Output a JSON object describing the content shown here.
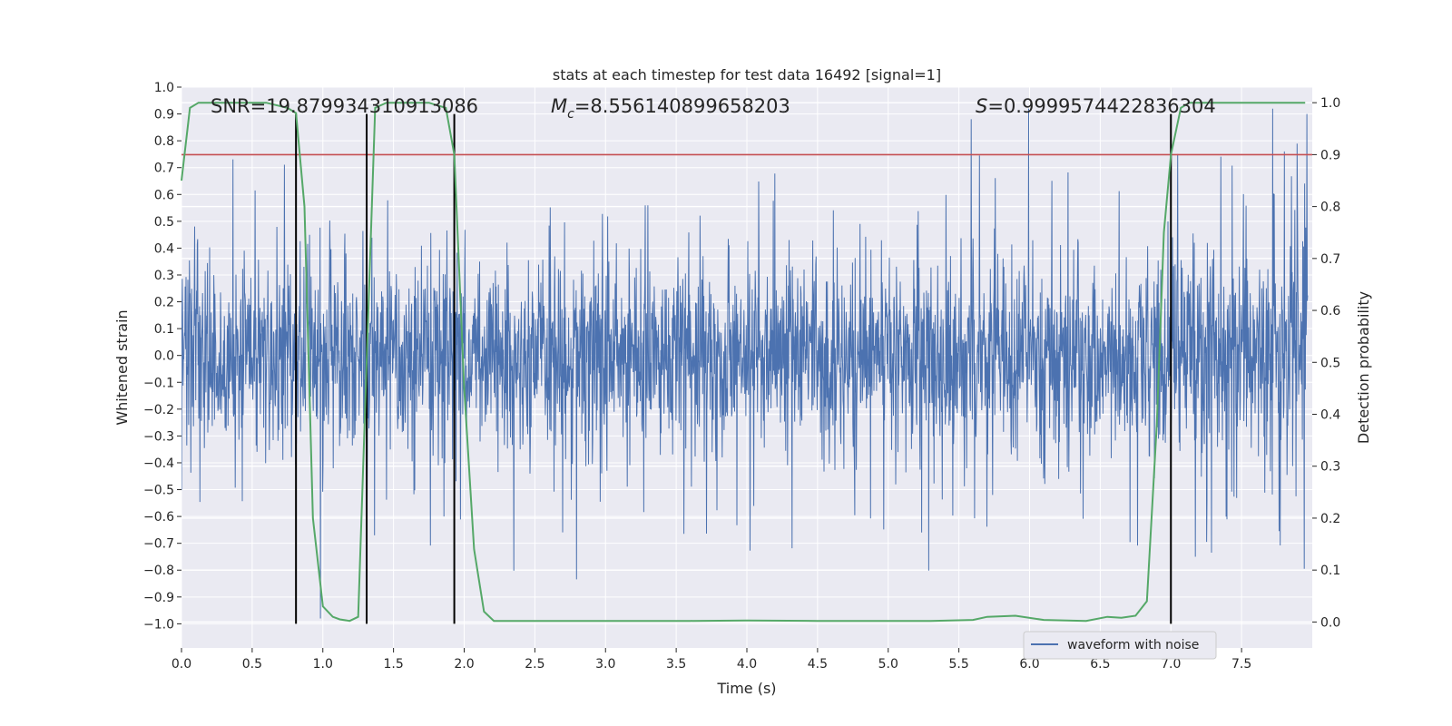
{
  "chart_data": {
    "type": "line",
    "title": "stats at each timestep for test data 16492 [signal=1]",
    "xlabel": "Time (s)",
    "ylabel_left": "Whitened strain",
    "ylabel_right": "Detection probability",
    "xlim": [
      0.0,
      8.0
    ],
    "ylim_left": [
      -1.09,
      1.0
    ],
    "ylim_right": [
      -0.05,
      1.03
    ],
    "x_ticks": [
      "0.0",
      "0.5",
      "1.0",
      "1.5",
      "2.0",
      "2.5",
      "3.0",
      "3.5",
      "4.0",
      "4.5",
      "5.0",
      "5.5",
      "6.0",
      "6.5",
      "7.0",
      "7.5"
    ],
    "x_tick_values": [
      0.0,
      0.5,
      1.0,
      1.5,
      2.0,
      2.5,
      3.0,
      3.5,
      4.0,
      4.5,
      5.0,
      5.5,
      6.0,
      6.5,
      7.0,
      7.5
    ],
    "y_left_ticks": [
      "1.0",
      "0.9",
      "0.8",
      "0.7",
      "0.6",
      "0.5",
      "0.4",
      "0.3",
      "0.2",
      "0.1",
      "0.0",
      "−0.1",
      "−0.2",
      "−0.3",
      "−0.4",
      "−0.5",
      "−0.6",
      "−0.7",
      "−0.8",
      "−0.9",
      "−1.0"
    ],
    "y_left_tick_values": [
      1.0,
      0.9,
      0.8,
      0.7,
      0.6,
      0.5,
      0.4,
      0.3,
      0.2,
      0.1,
      0.0,
      -0.1,
      -0.2,
      -0.3,
      -0.4,
      -0.5,
      -0.6,
      -0.7,
      -0.8,
      -0.9,
      -1.0
    ],
    "y_right_ticks": [
      "1.0",
      "0.9",
      "0.8",
      "0.7",
      "0.6",
      "0.5",
      "0.4",
      "0.3",
      "0.2",
      "0.1",
      "0.0"
    ],
    "y_right_tick_values": [
      1.0,
      0.9,
      0.8,
      0.7,
      0.6,
      0.5,
      0.4,
      0.3,
      0.2,
      0.1,
      0.0
    ],
    "threshold": 0.9,
    "vertical_lines_x": [
      0.81,
      1.31,
      1.93,
      7.0
    ],
    "annotations": {
      "snr": "SNR=19.879934310913086",
      "mc_symbol": "M",
      "mc_sub": "c",
      "mc_value": "=8.556140899658203",
      "s_symbol": "S",
      "s_value": "=0.9999574422836304"
    },
    "legend": [
      "waveform with noise"
    ],
    "series": [
      {
        "name": "Detection probability",
        "x": [
          0.0,
          0.06,
          0.12,
          0.3,
          0.6,
          0.75,
          0.81,
          0.87,
          0.93,
          1.0,
          1.07,
          1.12,
          1.19,
          1.25,
          1.31,
          1.37,
          1.45,
          1.75,
          1.87,
          1.93,
          2.0,
          2.07,
          2.14,
          2.21,
          2.4,
          2.8,
          3.2,
          3.6,
          4.0,
          4.5,
          5.0,
          5.3,
          5.6,
          5.7,
          5.9,
          6.1,
          6.4,
          6.55,
          6.65,
          6.75,
          6.83,
          6.9,
          6.95,
          7.0,
          7.07,
          7.13,
          7.5,
          7.95
        ],
        "values": [
          0.85,
          0.99,
          1.0,
          1.0,
          1.0,
          0.99,
          0.98,
          0.8,
          0.2,
          0.03,
          0.01,
          0.005,
          0.002,
          0.01,
          0.5,
          0.99,
          1.0,
          1.0,
          0.99,
          0.9,
          0.45,
          0.14,
          0.02,
          0.002,
          0.002,
          0.002,
          0.002,
          0.002,
          0.003,
          0.002,
          0.002,
          0.002,
          0.004,
          0.01,
          0.012,
          0.004,
          0.002,
          0.01,
          0.008,
          0.012,
          0.04,
          0.38,
          0.75,
          0.9,
          0.99,
          1.0,
          1.0,
          1.0
        ]
      }
    ]
  },
  "colors": {
    "background": "#eaeaf2",
    "grid": "#ffffff",
    "waveform": "#4c72b0",
    "probability": "#55a868",
    "threshold": "#c44e52",
    "vlines": "#000000"
  }
}
